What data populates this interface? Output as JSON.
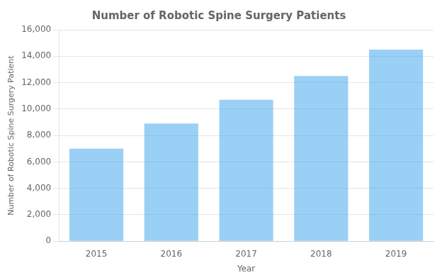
{
  "chart_data": {
    "type": "bar",
    "title": "Number of Robotic Spine Surgery Patients",
    "xlabel": "Year",
    "ylabel": "Number of Robotic Spine Surgery Patient",
    "categories": [
      "2015",
      "2016",
      "2017",
      "2018",
      "2019"
    ],
    "values": [
      7000,
      8900,
      10700,
      12500,
      14500
    ],
    "ylim": [
      0,
      16000
    ],
    "yticks": [
      0,
      {
        "value": 2000,
        "label": "2,000"
      },
      {
        "value": 4000,
        "label": "4,000"
      },
      {
        "value": 6000,
        "label": "6,000"
      },
      {
        "value": 8000,
        "label": "8,000"
      },
      {
        "value": 10000,
        "label": "10,000"
      },
      {
        "value": 12000,
        "label": "12,000"
      },
      {
        "value": 14000,
        "label": "14,000"
      },
      {
        "value": 16000,
        "label": "16,000"
      }
    ],
    "grid": true
  }
}
